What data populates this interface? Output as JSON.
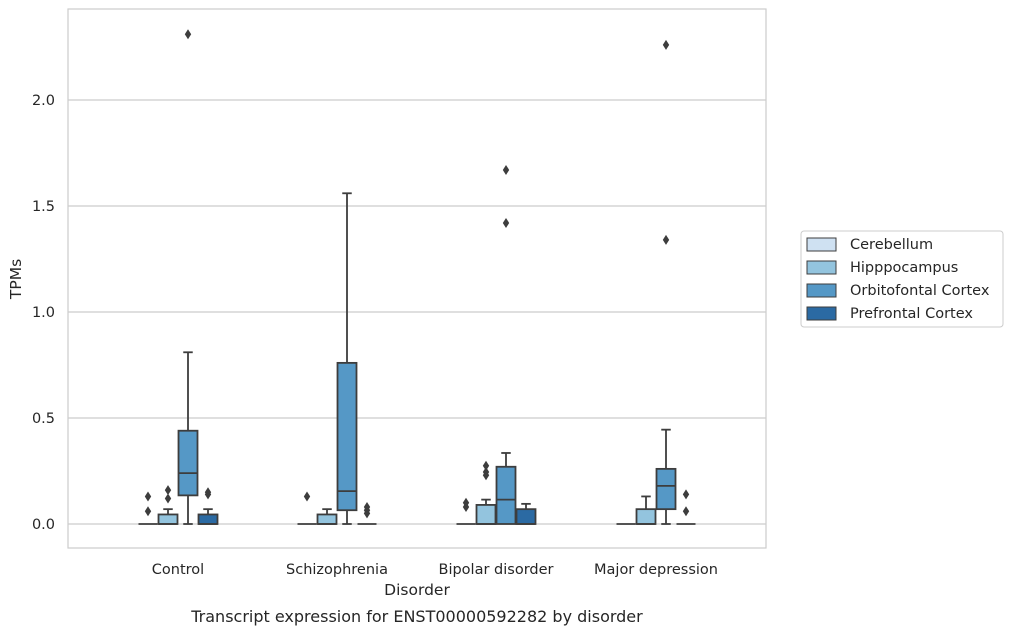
{
  "caption": "Transcript expression for ENST00000592282 by disorder",
  "chart_data": {
    "type": "box",
    "title": "",
    "xlabel": "Disorder",
    "ylabel": "TPMs",
    "categories": [
      "Control",
      "Schizophrenia",
      "Bipolar disorder",
      "Major depression"
    ],
    "ylim": [
      -0.11,
      2.43
    ],
    "yticks": [
      "0.0",
      "0.5",
      "1.0",
      "1.5",
      "2.0"
    ],
    "grid": "horizontal",
    "legend_position": "right",
    "series": [
      {
        "name": "Cerebellum",
        "color": "#cfe1f2",
        "boxes": [
          {
            "whislo": 0,
            "q1": 0,
            "med": 0,
            "q3": 0,
            "whishi": 0,
            "fliers": [
              0.06,
              0.13
            ]
          },
          {
            "whislo": 0,
            "q1": 0,
            "med": 0,
            "q3": 0,
            "whishi": 0,
            "fliers": [
              0.13
            ]
          },
          {
            "whislo": 0,
            "q1": 0,
            "med": 0,
            "q3": 0,
            "whishi": 0,
            "fliers": [
              0.08,
              0.1
            ]
          },
          {
            "whislo": 0,
            "q1": 0,
            "med": 0,
            "q3": 0,
            "whishi": 0,
            "fliers": []
          }
        ]
      },
      {
        "name": "Hipppocampus",
        "color": "#93c4de",
        "boxes": [
          {
            "whislo": 0,
            "q1": 0,
            "med": 0,
            "q3": 0.045,
            "whishi": 0.07,
            "fliers": [
              0.12,
              0.16
            ]
          },
          {
            "whislo": 0,
            "q1": 0,
            "med": 0,
            "q3": 0.045,
            "whishi": 0.07,
            "fliers": []
          },
          {
            "whislo": 0,
            "q1": 0,
            "med": 0,
            "q3": 0.09,
            "whishi": 0.115,
            "fliers": [
              0.23,
              0.245,
              0.275
            ]
          },
          {
            "whislo": 0,
            "q1": 0,
            "med": 0,
            "q3": 0.07,
            "whishi": 0.13,
            "fliers": []
          }
        ]
      },
      {
        "name": "Orbitofontal Cortex",
        "color": "#5598c6",
        "boxes": [
          {
            "whislo": 0,
            "q1": 0.135,
            "med": 0.24,
            "q3": 0.44,
            "whishi": 0.81,
            "fliers": [
              2.31
            ]
          },
          {
            "whislo": 0,
            "q1": 0.065,
            "med": 0.155,
            "q3": 0.76,
            "whishi": 1.56,
            "fliers": []
          },
          {
            "whislo": 0,
            "q1": 0,
            "med": 0.115,
            "q3": 0.27,
            "whishi": 0.335,
            "fliers": [
              1.42,
              1.67
            ]
          },
          {
            "whislo": 0,
            "q1": 0.07,
            "med": 0.18,
            "q3": 0.26,
            "whishi": 0.445,
            "fliers": [
              1.34,
              2.26
            ]
          }
        ]
      },
      {
        "name": "Prefrontal Cortex",
        "color": "#2b6aa3",
        "boxes": [
          {
            "whislo": 0,
            "q1": 0,
            "med": 0,
            "q3": 0.045,
            "whishi": 0.07,
            "fliers": [
              0.14,
              0.15
            ]
          },
          {
            "whislo": 0,
            "q1": 0,
            "med": 0,
            "q3": 0,
            "whishi": 0,
            "fliers": [
              0.05,
              0.065,
              0.08
            ]
          },
          {
            "whislo": 0,
            "q1": 0,
            "med": 0,
            "q3": 0.07,
            "whishi": 0.095,
            "fliers": []
          },
          {
            "whislo": 0,
            "q1": 0,
            "med": 0,
            "q3": 0,
            "whishi": 0,
            "fliers": [
              0.06,
              0.14
            ]
          }
        ]
      }
    ]
  }
}
